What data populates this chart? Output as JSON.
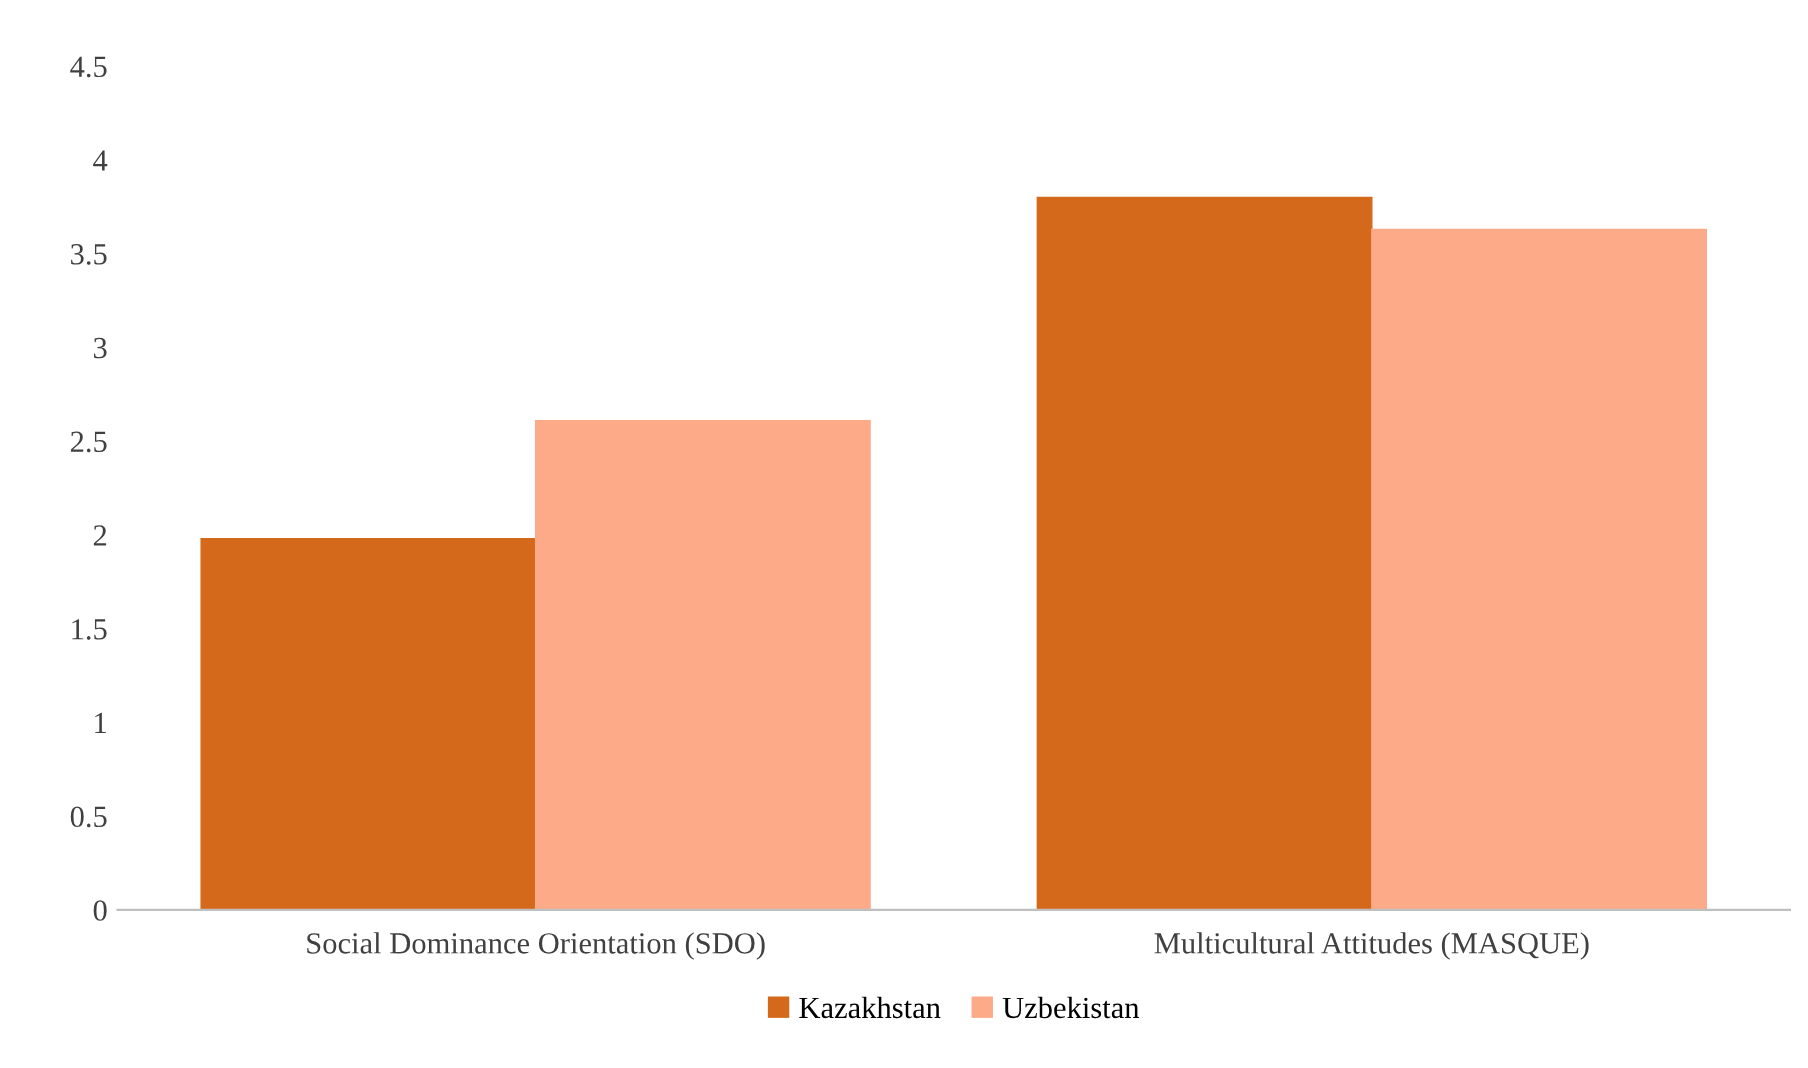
{
  "chart_data": {
    "type": "bar",
    "categories": [
      "Social Dominance Orientation (SDO)",
      "Multicultural Attitudes (MASQUE)"
    ],
    "series": [
      {
        "name": "Kazakhstan",
        "color": "#d4691b",
        "values": [
          1.98,
          3.8
        ]
      },
      {
        "name": "Uzbekistan",
        "color": "#fcaa88",
        "values": [
          2.61,
          3.63
        ]
      }
    ],
    "ylim": [
      0,
      4.5
    ],
    "yticks": [
      0,
      0.5,
      1,
      1.5,
      2,
      2.5,
      3,
      3.5,
      4,
      4.5
    ],
    "grid": false,
    "legend": "bottom"
  }
}
